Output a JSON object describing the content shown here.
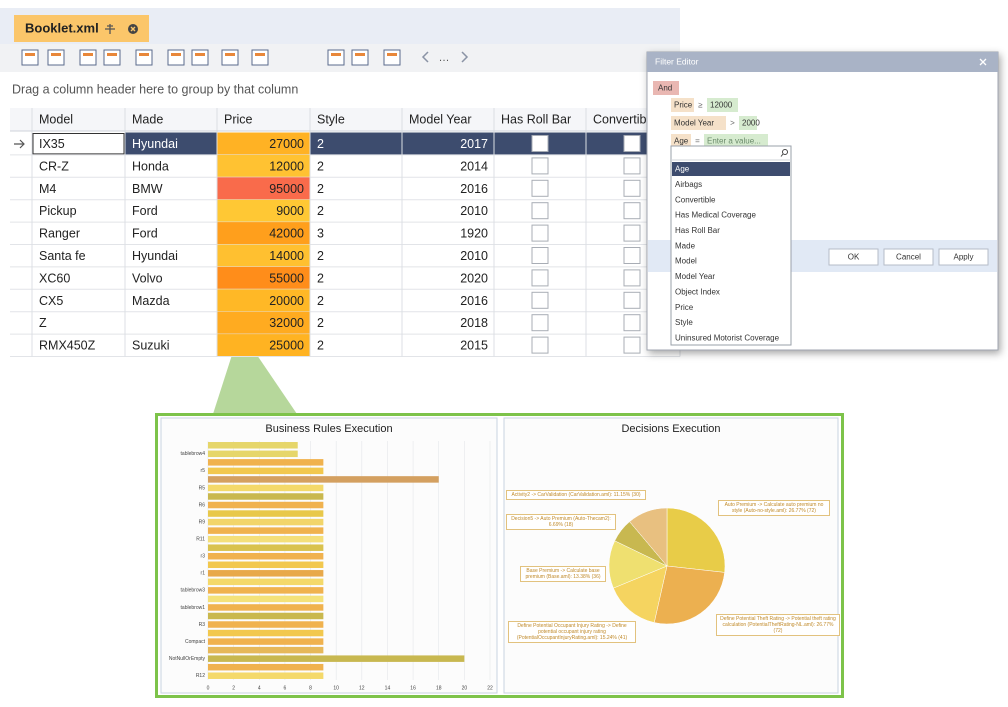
{
  "tab": {
    "title": "Booklet.xml"
  },
  "group_hint": "Drag a column header here to group by that column",
  "grid": {
    "columns": [
      "Model",
      "Made",
      "Price",
      "Style",
      "Model Year",
      "Has Roll Bar",
      "Convertib"
    ],
    "rows": [
      [
        "IX35",
        "Hyundai",
        "27000",
        "2",
        "2017"
      ],
      [
        "CR-Z",
        "Honda",
        "12000",
        "2",
        "2014"
      ],
      [
        "M4",
        "BMW",
        "95000",
        "2",
        "2016"
      ],
      [
        "Pickup",
        "Ford",
        "9000",
        "2",
        "2010"
      ],
      [
        "Ranger",
        "Ford",
        "42000",
        "3",
        "1920"
      ],
      [
        "Santa fe",
        "Hyundai",
        "14000",
        "2",
        "2010"
      ],
      [
        "XC60",
        "Volvo",
        "55000",
        "2",
        "2020"
      ],
      [
        "CX5",
        "Mazda",
        "20000",
        "2",
        "2016"
      ],
      [
        "Z",
        null,
        "32000",
        "2",
        "2018"
      ],
      [
        "RMX450Z",
        "Suzuki",
        "25000",
        "2",
        "2015"
      ]
    ],
    "price_colors": [
      "#ffb224",
      "#ffc232",
      "#f96b4b",
      "#ffc834",
      "#ff9f1c",
      "#ffc030",
      "#ff8d1a",
      "#ffb826",
      "#ffab20",
      "#ffb322"
    ]
  },
  "filter_editor": {
    "title": "Filter Editor",
    "group": "And",
    "conditions": [
      {
        "field": "Price",
        "op": "≥",
        "value": "12000"
      },
      {
        "field": "Model Year",
        "op": ">",
        "value": "2000"
      },
      {
        "field": "Age",
        "op": "=",
        "value": "Enter a value..."
      }
    ],
    "fields": [
      "Age",
      "Airbags",
      "Convertible",
      "Has Medical Coverage",
      "Has Roll Bar",
      "Made",
      "Model",
      "Model Year",
      "Object Index",
      "Price",
      "Style",
      "Uninsured Motorist Coverage"
    ],
    "buttons": [
      "OK",
      "Cancel",
      "Apply"
    ]
  },
  "chart_data": [
    {
      "type": "bar",
      "orientation": "horizontal",
      "title": "Business Rules Execution",
      "categories": [
        null,
        "tablebrow4",
        null,
        "r5",
        null,
        "R5",
        null,
        "R6",
        null,
        "R9",
        null,
        "R11",
        null,
        "r3",
        null,
        "r1",
        null,
        "tablebrow3",
        null,
        "tablebrow1",
        null,
        "R3",
        null,
        "Compact",
        null,
        "NotNullOrEmpty",
        null,
        "R12"
      ],
      "values": [
        7,
        7,
        9,
        9,
        18,
        9,
        9,
        9,
        9,
        9,
        9,
        9,
        9,
        9,
        9,
        9,
        9,
        9,
        9,
        9,
        9,
        9,
        9,
        9,
        9,
        20,
        9,
        9
      ],
      "colors": [
        "#e6d66a",
        "#e6d66a",
        "#f0b24e",
        "#f2c84e",
        "#d4a060",
        "#f4d96a",
        "#c9b84e",
        "#f0b24e",
        "#e8c84a",
        "#f2d56a",
        "#f0b24e",
        "#f4df7a",
        "#d9c24e",
        "#f0b24e",
        "#f2c84e",
        "#e8a94a",
        "#f4d96a",
        "#f0b24e",
        "#f4e27a",
        "#f0b24e",
        "#c9b84e",
        "#f0b24e",
        "#f2c84e",
        "#f0b24e",
        "#e6b85a",
        "#c8b850",
        "#f0b24e",
        "#f4d96a"
      ],
      "xlim": [
        0,
        22
      ],
      "xticks": [
        0,
        2,
        4,
        6,
        8,
        10,
        12,
        14,
        16,
        18,
        20,
        22
      ],
      "grid": true
    },
    {
      "type": "pie",
      "title": "Decisions Execution",
      "categories": [
        "Auto Premium -> Calculate auto premium no style (Auto-no-style.aml): 26.77% (72)",
        "Define Potential Theft Rating -> Potential theft rating calculation (PotentialTheftRating-NL.aml): 26.77% (72)",
        "Define Potential Occupant Injury Rating -> Define potential occupant injury rating (PotentialOccupantInjuryRating.aml): 15.24% (41)",
        "Base Premium -> Calculate base premium (Base.aml): 13.38% (36)",
        "Decision5 -> Auto Premium (Auto-Thecam2): 6.69% (18)",
        "Activity2 -> CarValidation (CarValidation.aml): 11.15% (30)"
      ],
      "values": [
        72,
        72,
        41,
        36,
        18,
        30
      ],
      "colors": [
        "#e8cc48",
        "#ecb050",
        "#f5d460",
        "#efe070",
        "#c8b850",
        "#e8c080"
      ]
    }
  ]
}
